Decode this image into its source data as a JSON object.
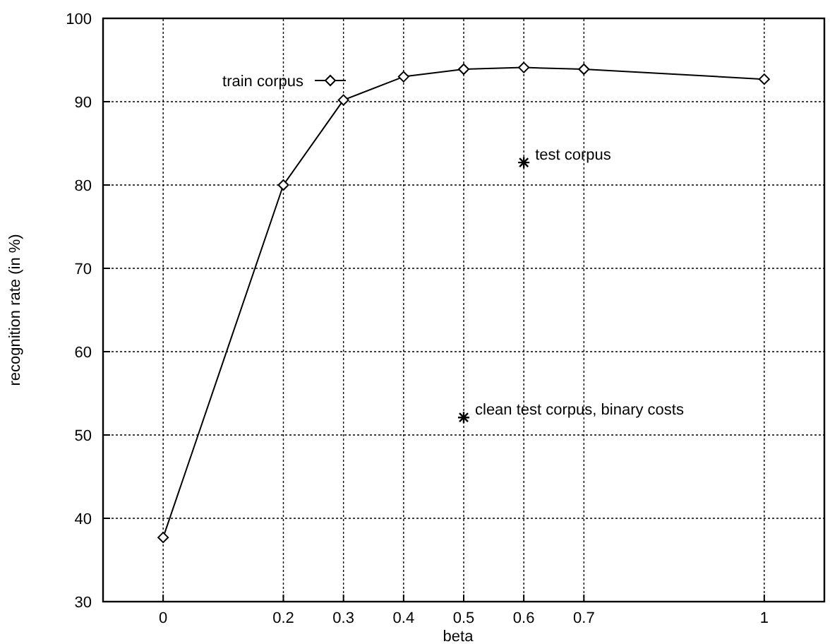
{
  "chart_data": {
    "type": "line",
    "xlabel": "beta",
    "ylabel": "recognition rate (in %)",
    "xlim": [
      -0.1,
      1.1
    ],
    "ylim": [
      30,
      100
    ],
    "xticks": [
      0,
      0.2,
      0.3,
      0.4,
      0.5,
      0.6,
      0.7,
      1
    ],
    "yticks": [
      30,
      40,
      50,
      60,
      70,
      80,
      90,
      100
    ],
    "grid": true,
    "legend": "top left",
    "series": [
      {
        "name": "train corpus",
        "color": "#000000",
        "marker": "diamond",
        "x": [
          0,
          0.2,
          0.3,
          0.4,
          0.5,
          0.6,
          0.7,
          1
        ],
        "values": [
          37.7,
          80,
          90.2,
          93,
          93.9,
          94.1,
          93.9,
          92.7
        ]
      },
      {
        "name": "test corpus",
        "color": "#000000",
        "type": "scatter",
        "marker": "cross",
        "x": [
          0.6
        ],
        "values": [
          82.7
        ]
      },
      {
        "name": "clean test corpus, binary costs",
        "color": "#000000",
        "type": "scatter",
        "marker": "cross",
        "x": [
          0.5
        ],
        "values": [
          52.1
        ]
      }
    ]
  }
}
